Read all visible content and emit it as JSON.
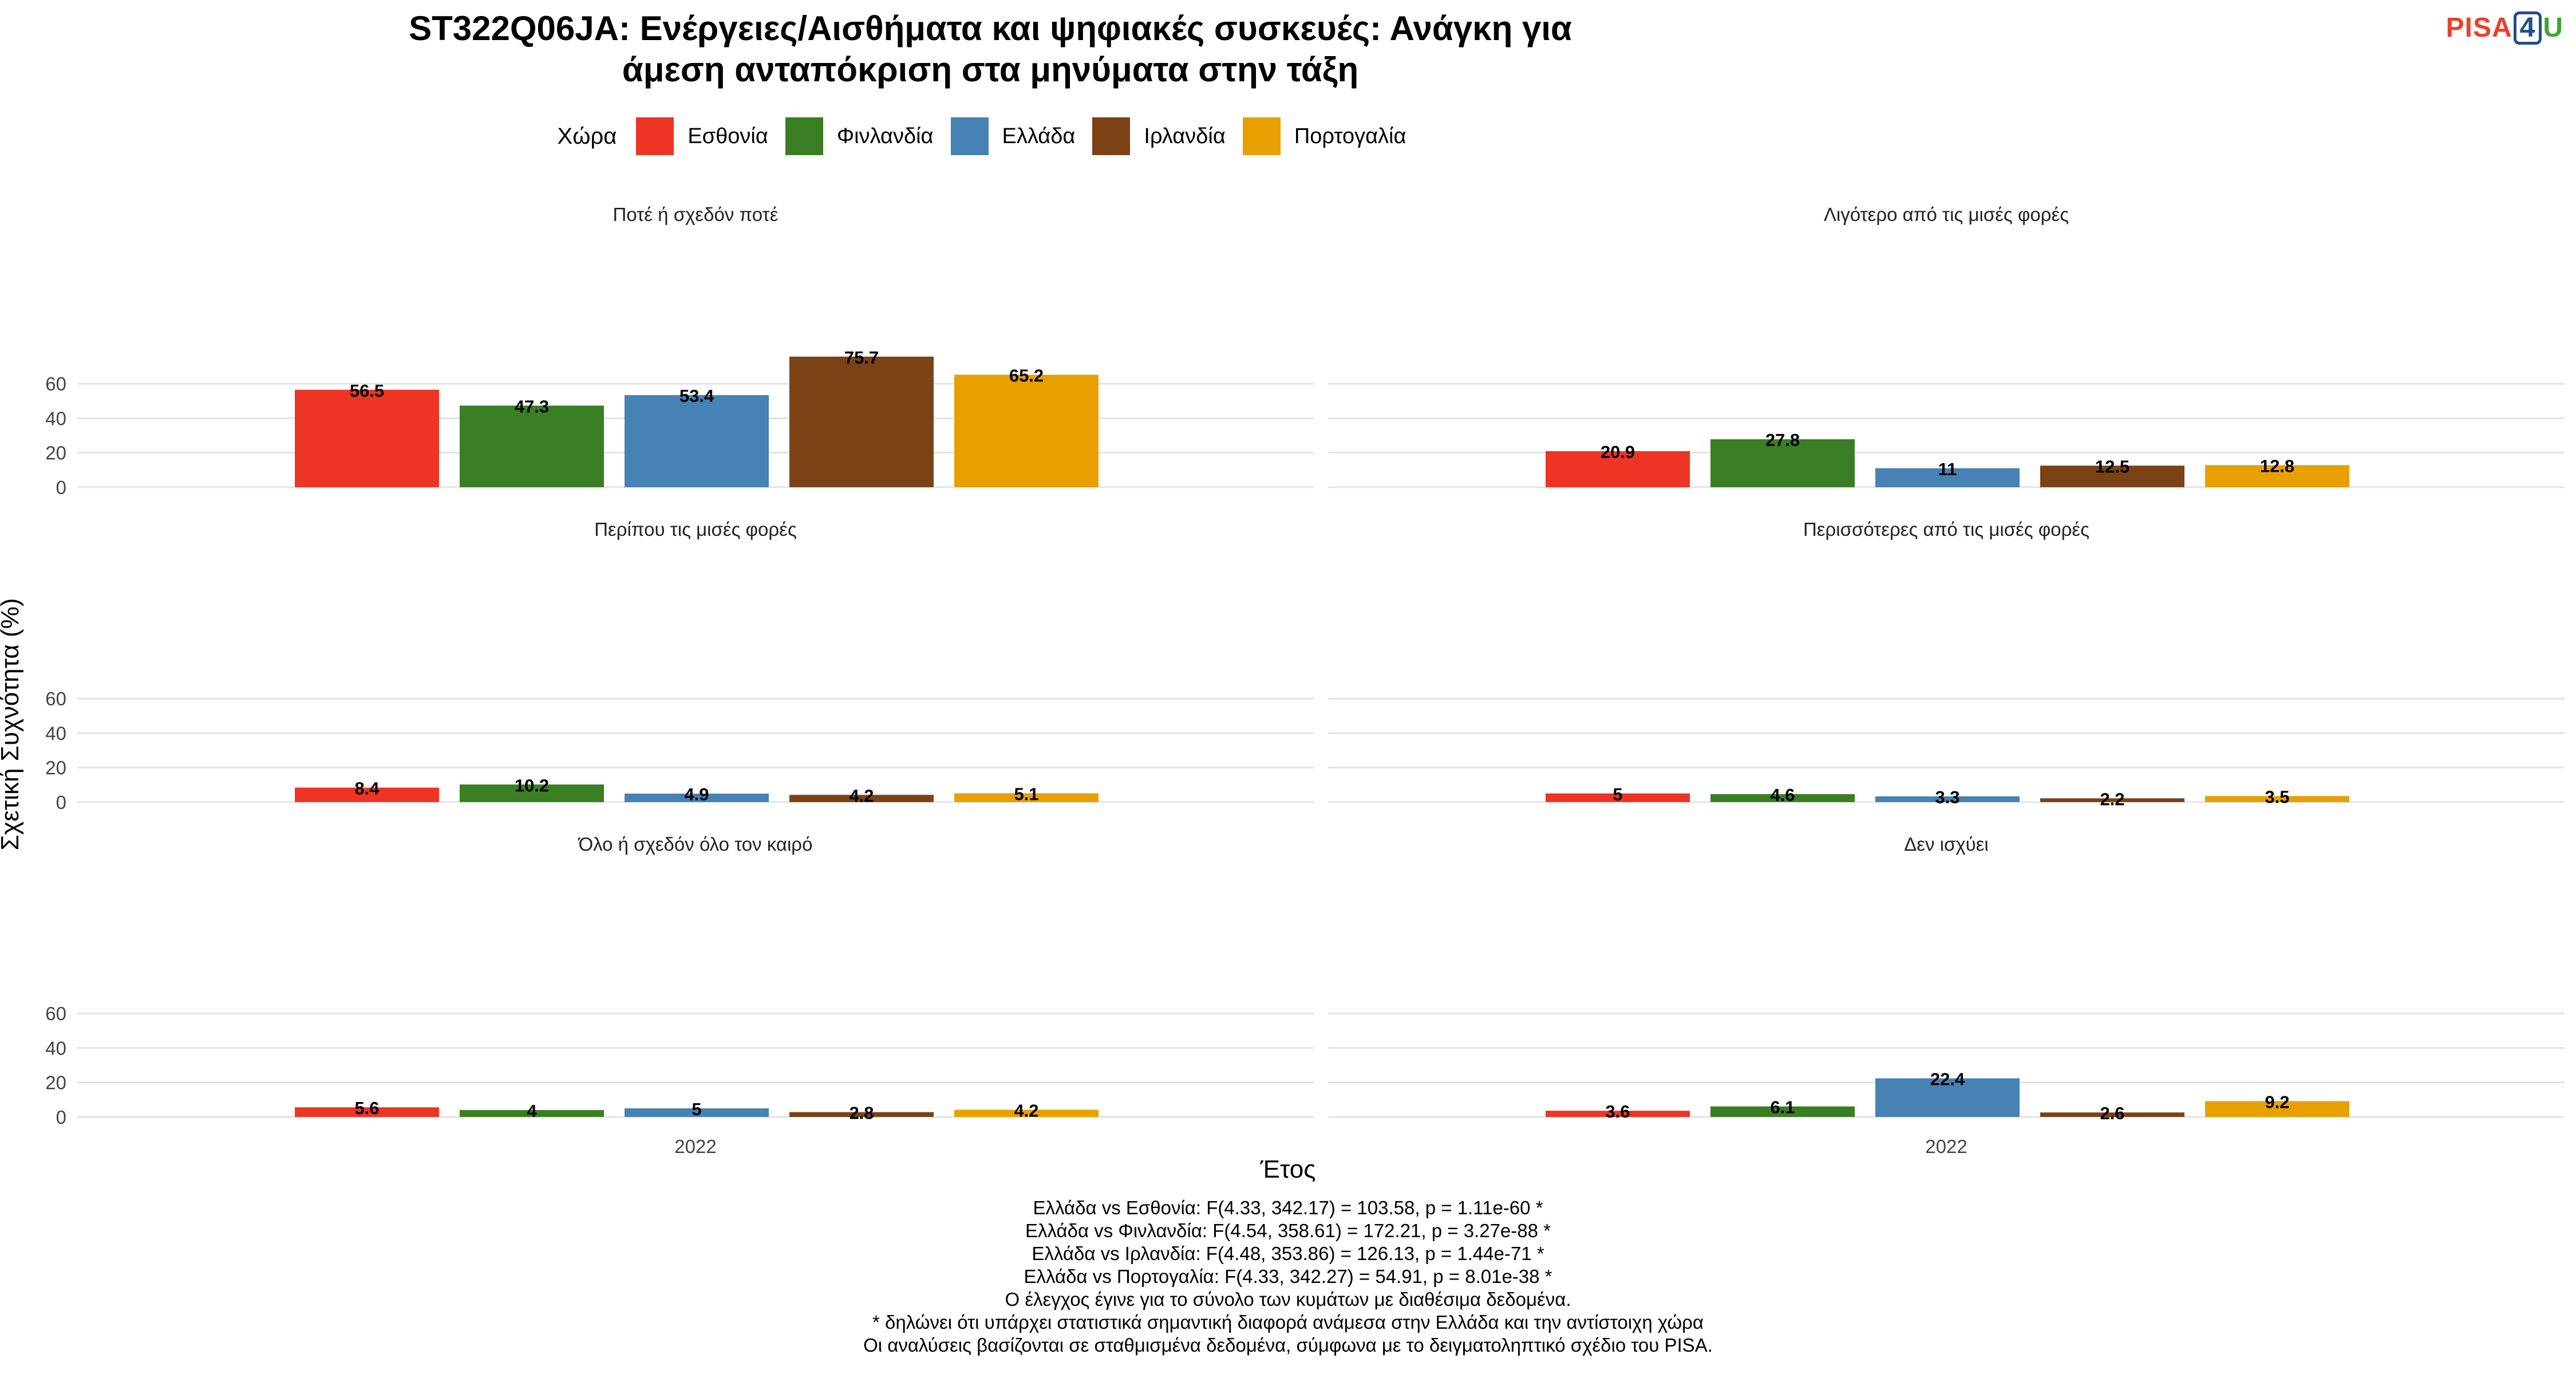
{
  "title_lines": [
    "ST322Q06JA: Ενέργειες/Αισθήματα και ψηφιακές συσκευές: Ανάγκη για",
    "άμεση ανταπόκριση στα μηνύματα στην τάξη"
  ],
  "logo": {
    "part1": "PISA",
    "part2": "4",
    "part3": "U"
  },
  "legend": {
    "title": "Χώρα",
    "items": [
      {
        "label": "Εσθονία",
        "color": "#EE3424"
      },
      {
        "label": "Φινλανδία",
        "color": "#3A7E23"
      },
      {
        "label": "Ελλάδα",
        "color": "#4682B4"
      },
      {
        "label": "Ιρλανδία",
        "color": "#7B4216"
      },
      {
        "label": "Πορτογαλία",
        "color": "#E8A000"
      }
    ]
  },
  "axis": {
    "ylabel": "Σχετική Συχνότητα (%)",
    "xlabel": "Έτος"
  },
  "chart_data": {
    "type": "bar",
    "x_category": "2022",
    "ylim": [
      0,
      78
    ],
    "yticks": [
      0,
      20,
      40,
      60
    ],
    "grid": true,
    "legend_position": "top",
    "series_names": [
      "Εσθονία",
      "Φινλανδία",
      "Ελλάδα",
      "Ιρλανδία",
      "Πορτογαλία"
    ],
    "colors": [
      "#EE3424",
      "#3A7E23",
      "#4682B4",
      "#7B4216",
      "#E8A000"
    ],
    "panels": [
      {
        "title": "Ποτέ ή σχεδόν ποτέ",
        "values": [
          56.5,
          47.3,
          53.4,
          75.7,
          65.2
        ],
        "labels": [
          "56.5",
          "47.3",
          "53.4",
          "75.7",
          "65.2"
        ]
      },
      {
        "title": "Λιγότερο από τις μισές φορές",
        "values": [
          20.9,
          27.8,
          11,
          12.5,
          12.8
        ],
        "labels": [
          "20.9",
          "27.8",
          "11",
          "12.5",
          "12.8"
        ]
      },
      {
        "title": "Περίπου τις μισές φορές",
        "values": [
          8.4,
          10.2,
          4.9,
          4.2,
          5.1
        ],
        "labels": [
          "8.4",
          "10.2",
          "4.9",
          "4.2",
          "5.1"
        ]
      },
      {
        "title": "Περισσότερες από τις μισές φορές",
        "values": [
          5,
          4.6,
          3.3,
          2.2,
          3.5
        ],
        "labels": [
          "5",
          "4.6",
          "3.3",
          "2.2",
          "3.5"
        ]
      },
      {
        "title": "Όλο ή σχεδόν όλο τον καιρό",
        "values": [
          5.6,
          4,
          5,
          2.8,
          4.2
        ],
        "labels": [
          "5.6",
          "4",
          "5",
          "2.8",
          "4.2"
        ]
      },
      {
        "title": "Δεν ισχύει",
        "values": [
          3.6,
          6.1,
          22.4,
          2.6,
          9.2
        ],
        "labels": [
          "3.6",
          "6.1",
          "22.4",
          "2.6",
          "9.2"
        ]
      }
    ]
  },
  "caption_lines": [
    "Ελλάδα vs Εσθονία: F(4.33, 342.17) = 103.58, p = 1.11e-60 *",
    "Ελλάδα vs Φινλανδία: F(4.54, 358.61) = 172.21, p = 3.27e-88 *",
    "Ελλάδα vs Ιρλανδία: F(4.48, 353.86) = 126.13, p = 1.44e-71 *",
    "Ελλάδα vs Πορτογαλία: F(4.33, 342.27) = 54.91, p = 8.01e-38 *",
    "Ο έλεγχος έγινε για το σύνολο των κυμάτων με διαθέσιμα δεδομένα.",
    "* δηλώνει ότι υπάρχει στατιστικά σημαντική διαφορά ανάμεσα στην Ελλάδα και την αντίστοιχη χώρα",
    "Οι αναλύσεις βασίζονται σε σταθμισμένα δεδομένα, σύμφωνα με το δειγματοληπτικό σχέδιο του PISA."
  ]
}
